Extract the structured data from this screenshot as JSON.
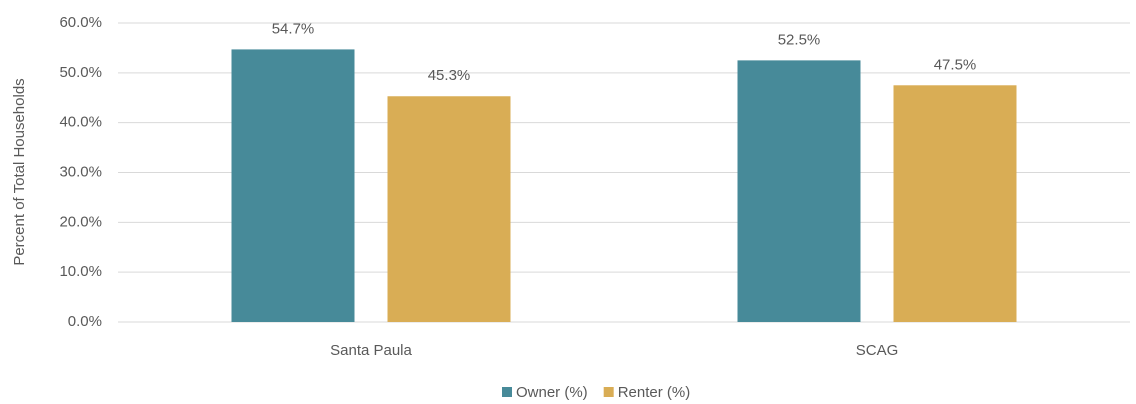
{
  "chart_data": {
    "type": "bar",
    "y_label": "Percent of Total Households",
    "categories": [
      "Santa Paula",
      "SCAG"
    ],
    "series": [
      {
        "name": "Owner (%)",
        "color": "#478a99",
        "values": [
          54.7,
          52.5
        ],
        "value_labels": [
          "54.7%",
          "52.5%"
        ]
      },
      {
        "name": "Renter (%)",
        "color": "#d9ad55",
        "values": [
          45.3,
          47.5
        ],
        "value_labels": [
          "45.3%",
          "47.5%"
        ]
      }
    ],
    "ylim": [
      0,
      60
    ],
    "yticks": [
      {
        "value": 0,
        "label": "0.0%"
      },
      {
        "value": 10,
        "label": "10.0%"
      },
      {
        "value": 20,
        "label": "20.0%"
      },
      {
        "value": 30,
        "label": "30.0%"
      },
      {
        "value": 40,
        "label": "40.0%"
      },
      {
        "value": 50,
        "label": "50.0%"
      },
      {
        "value": 60,
        "label": "60.0%"
      }
    ],
    "grid": true,
    "legend": "bottom"
  }
}
